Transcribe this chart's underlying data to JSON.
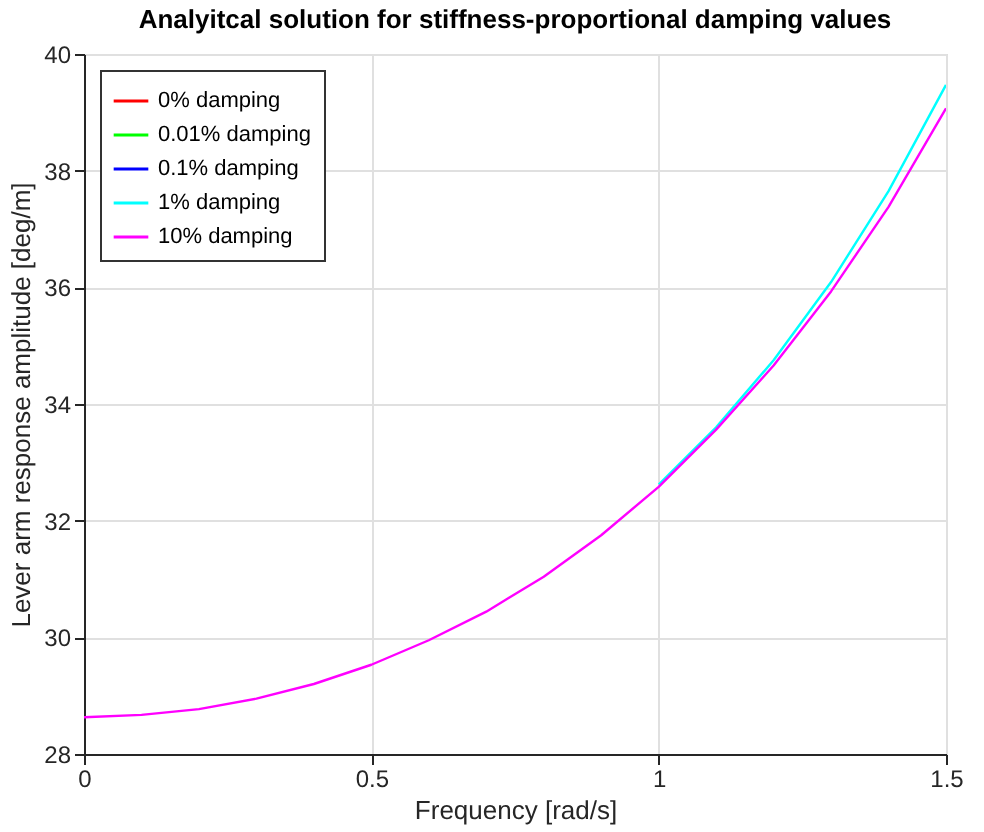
{
  "chart_data": {
    "type": "line",
    "title": "Analyitcal solution for stiffness-proportional damping values",
    "xlabel": "Frequency [rad/s]",
    "ylabel": "Lever arm response amplitude [deg/m]",
    "x": [
      0,
      0.1,
      0.2,
      0.3,
      0.4,
      0.5,
      0.6,
      0.7,
      0.8,
      0.9,
      1.0,
      1.1,
      1.2,
      1.3,
      1.4,
      1.5
    ],
    "series": [
      {
        "name": "0% damping",
        "color": "#ff0000",
        "values": [
          null,
          null,
          null,
          null,
          null,
          null,
          null,
          null,
          null,
          null,
          null,
          null,
          null,
          null,
          null,
          null
        ]
      },
      {
        "name": "0.01% damping",
        "color": "#00ff00",
        "values": [
          null,
          null,
          null,
          null,
          null,
          null,
          null,
          null,
          null,
          null,
          null,
          null,
          null,
          null,
          null,
          null
        ]
      },
      {
        "name": "0.1% damping",
        "color": "#0000ff",
        "values": [
          null,
          null,
          null,
          null,
          null,
          null,
          null,
          null,
          null,
          null,
          null,
          null,
          null,
          null,
          null,
          null
        ]
      },
      {
        "name": "1% damping",
        "color": "#00ffff",
        "values": [
          null,
          null,
          null,
          null,
          null,
          null,
          null,
          null,
          null,
          null,
          32.62,
          33.6,
          34.75,
          36.09,
          37.65,
          39.47
        ]
      },
      {
        "name": "10% damping",
        "color": "#ff00ff",
        "values": [
          28.63,
          28.67,
          28.77,
          28.95,
          29.2,
          29.53,
          29.95,
          30.44,
          31.04,
          31.75,
          32.58,
          33.56,
          34.66,
          35.93,
          37.38,
          39.07
        ]
      }
    ],
    "xlim": [
      0,
      1.5
    ],
    "xticks": [
      0,
      0.5,
      1,
      1.5
    ],
    "ylim": [
      28,
      40
    ],
    "yticks": [
      28,
      30,
      32,
      34,
      36,
      38,
      40
    ],
    "grid": true,
    "legend": "top left",
    "marker": "none",
    "line_style": "solid"
  }
}
